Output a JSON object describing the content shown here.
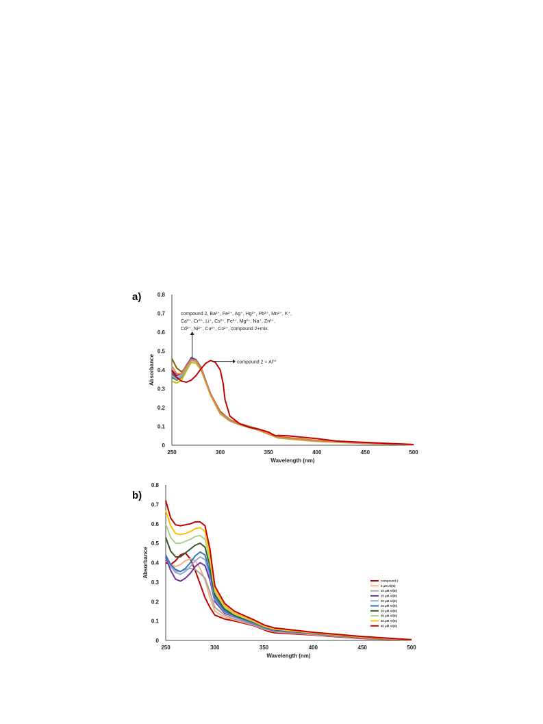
{
  "chart_data": [
    {
      "panel": "a)",
      "type": "line",
      "xlabel": "Wavelength (nm)",
      "ylabel": "Absorbance",
      "xlim": [
        250,
        500
      ],
      "ylim": [
        0,
        0.8
      ],
      "xticks": [
        "250",
        "300",
        "350",
        "400",
        "450",
        "500"
      ],
      "yticks": [
        "0",
        "0.1",
        "0.2",
        "0.3",
        "0.4",
        "0.5",
        "0.6",
        "0.7",
        "0.8"
      ],
      "annotation_main": {
        "lines": [
          "compound 2, Ba²⁺, Fe²⁺, Ag⁺, Hg²⁺, Pb²⁺, Mn²⁺, K⁺,",
          "Ca²⁺, Cr³⁺, Li⁺, Cs²⁺, Fe³⁺, Mg²⁺, Na⁺, Zn²⁺,",
          "Cd²⁺, Ni²⁺, Cu²⁺, Co²⁺, compound 2+mix."
        ]
      },
      "annotation_al": "compound 2 + Al³⁺",
      "series": [
        {
          "color": "#c00000",
          "x": [
            250,
            255,
            260,
            265,
            270,
            275,
            280,
            285,
            290,
            295,
            300,
            303,
            305,
            310,
            320,
            330,
            340,
            350,
            355,
            358,
            360,
            370,
            380,
            400,
            420,
            450,
            480,
            500
          ],
          "y": [
            0.395,
            0.36,
            0.34,
            0.335,
            0.345,
            0.37,
            0.405,
            0.435,
            0.45,
            0.44,
            0.4,
            0.33,
            0.24,
            0.155,
            0.115,
            0.095,
            0.085,
            0.07,
            0.055,
            0.05,
            0.052,
            0.05,
            0.045,
            0.035,
            0.022,
            0.015,
            0.008,
            0.004
          ]
        },
        {
          "color": "#7f6000",
          "x": [
            250,
            255,
            260,
            265,
            270,
            275,
            280,
            285,
            290,
            300,
            310,
            320,
            340,
            350,
            360,
            400,
            450,
            500
          ],
          "y": [
            0.46,
            0.41,
            0.39,
            0.415,
            0.455,
            0.45,
            0.41,
            0.34,
            0.27,
            0.18,
            0.135,
            0.115,
            0.085,
            0.065,
            0.045,
            0.025,
            0.012,
            0.003
          ]
        },
        {
          "color": "#548235",
          "x": [
            250,
            255,
            260,
            265,
            270,
            275,
            280,
            285,
            290,
            300,
            310,
            320,
            340,
            350,
            360,
            400,
            450,
            500
          ],
          "y": [
            0.36,
            0.345,
            0.36,
            0.41,
            0.455,
            0.45,
            0.41,
            0.34,
            0.27,
            0.17,
            0.13,
            0.11,
            0.08,
            0.06,
            0.04,
            0.022,
            0.01,
            0.002
          ]
        },
        {
          "color": "#3a5f9f",
          "x": [
            250,
            255,
            260,
            265,
            270,
            275,
            280,
            285,
            290,
            300,
            310,
            320,
            340,
            350,
            360,
            400,
            450,
            500
          ],
          "y": [
            0.38,
            0.355,
            0.37,
            0.42,
            0.465,
            0.455,
            0.415,
            0.345,
            0.275,
            0.175,
            0.133,
            0.112,
            0.08,
            0.06,
            0.04,
            0.022,
            0.01,
            0.002
          ]
        },
        {
          "color": "#7030a0",
          "x": [
            250,
            255,
            260,
            265,
            270,
            275,
            280,
            285,
            290,
            300,
            310,
            320,
            340,
            350,
            360,
            400,
            430,
            450,
            500
          ],
          "y": [
            0.4,
            0.37,
            0.38,
            0.425,
            0.46,
            0.45,
            0.41,
            0.34,
            0.27,
            0.175,
            0.132,
            0.11,
            0.08,
            0.06,
            0.04,
            0.022,
            0.018,
            0.014,
            0.002
          ]
        },
        {
          "color": "#bfbf00",
          "x": [
            250,
            255,
            260,
            265,
            270,
            275,
            280,
            285,
            290,
            300,
            310,
            320,
            340,
            350,
            360,
            400,
            450,
            500
          ],
          "y": [
            0.34,
            0.33,
            0.345,
            0.395,
            0.44,
            0.435,
            0.4,
            0.335,
            0.265,
            0.165,
            0.128,
            0.108,
            0.078,
            0.058,
            0.038,
            0.02,
            0.009,
            0.002
          ]
        },
        {
          "color": "#8faadc",
          "x": [
            250,
            255,
            260,
            265,
            270,
            275,
            280,
            285,
            290,
            300,
            310,
            320,
            340,
            350,
            360,
            400,
            450,
            500
          ],
          "y": [
            0.37,
            0.35,
            0.365,
            0.41,
            0.45,
            0.445,
            0.405,
            0.34,
            0.27,
            0.17,
            0.13,
            0.11,
            0.08,
            0.06,
            0.04,
            0.022,
            0.01,
            0.002
          ]
        },
        {
          "color": "#a5a5a5",
          "x": [
            250,
            255,
            260,
            265,
            270,
            275,
            280,
            285,
            290,
            300,
            310,
            320,
            340,
            350,
            360,
            400,
            450,
            500
          ],
          "y": [
            0.39,
            0.36,
            0.37,
            0.415,
            0.455,
            0.45,
            0.41,
            0.34,
            0.27,
            0.172,
            0.131,
            0.11,
            0.08,
            0.06,
            0.04,
            0.022,
            0.01,
            0.002
          ]
        },
        {
          "color": "#ed7d31",
          "x": [
            250,
            255,
            260,
            265,
            270,
            275,
            280,
            285,
            290,
            300,
            310,
            320,
            340,
            350,
            360,
            400,
            450,
            500
          ],
          "y": [
            0.42,
            0.38,
            0.38,
            0.42,
            0.455,
            0.45,
            0.41,
            0.34,
            0.27,
            0.175,
            0.133,
            0.112,
            0.082,
            0.062,
            0.042,
            0.024,
            0.012,
            0.003
          ]
        }
      ]
    },
    {
      "panel": "b)",
      "type": "line",
      "xlabel": "Wavelength (nm)",
      "ylabel": "Absorbance",
      "xlim": [
        250,
        500
      ],
      "ylim": [
        0,
        0.8
      ],
      "xticks": [
        "250",
        "300",
        "350",
        "400",
        "450",
        "500"
      ],
      "yticks": [
        "0",
        "0.1",
        "0.2",
        "0.3",
        "0.4",
        "0.5",
        "0.6",
        "0.7",
        "0.8"
      ],
      "series": [
        {
          "name": "compound 2",
          "color": "#c00000",
          "x": [
            250,
            255,
            260,
            265,
            270,
            275,
            280,
            285,
            290,
            295,
            300,
            310,
            320,
            340,
            350,
            355,
            360,
            400,
            420,
            450,
            480,
            500
          ],
          "y": [
            0.4,
            0.39,
            0.41,
            0.44,
            0.45,
            0.42,
            0.36,
            0.29,
            0.22,
            0.17,
            0.13,
            0.11,
            0.1,
            0.075,
            0.055,
            0.045,
            0.04,
            0.028,
            0.02,
            0.01,
            0.005,
            0.002
          ]
        },
        {
          "name": "5 μM Al(III)",
          "color": "#f4b183",
          "x": [
            250,
            255,
            260,
            265,
            270,
            275,
            280,
            285,
            290,
            295,
            300,
            310,
            320,
            340,
            350,
            360,
            400,
            450,
            500
          ],
          "y": [
            0.42,
            0.39,
            0.38,
            0.39,
            0.41,
            0.42,
            0.41,
            0.37,
            0.31,
            0.22,
            0.15,
            0.12,
            0.105,
            0.078,
            0.058,
            0.045,
            0.03,
            0.012,
            0.002
          ]
        },
        {
          "name": "10 μM Al(III)",
          "color": "#a5a5a5",
          "x": [
            250,
            255,
            260,
            265,
            270,
            275,
            280,
            285,
            290,
            295,
            300,
            310,
            320,
            340,
            350,
            360,
            400,
            450,
            500
          ],
          "y": [
            0.43,
            0.38,
            0.355,
            0.355,
            0.365,
            0.37,
            0.365,
            0.345,
            0.32,
            0.25,
            0.17,
            0.13,
            0.11,
            0.08,
            0.06,
            0.047,
            0.032,
            0.013,
            0.002
          ]
        },
        {
          "name": "15 μM Al(III)",
          "color": "#7030a0",
          "x": [
            250,
            255,
            260,
            265,
            270,
            275,
            280,
            285,
            290,
            295,
            300,
            310,
            320,
            340,
            350,
            360,
            400,
            450,
            500
          ],
          "y": [
            0.43,
            0.36,
            0.315,
            0.305,
            0.32,
            0.345,
            0.38,
            0.4,
            0.385,
            0.31,
            0.2,
            0.14,
            0.12,
            0.085,
            0.065,
            0.05,
            0.034,
            0.014,
            0.003
          ]
        },
        {
          "name": "20 μM Al(III)",
          "color": "#8faadc",
          "x": [
            250,
            255,
            260,
            265,
            270,
            275,
            280,
            285,
            290,
            295,
            300,
            310,
            320,
            340,
            350,
            360,
            400,
            450,
            500
          ],
          "y": [
            0.44,
            0.38,
            0.35,
            0.34,
            0.355,
            0.38,
            0.41,
            0.43,
            0.415,
            0.33,
            0.21,
            0.145,
            0.122,
            0.087,
            0.066,
            0.052,
            0.035,
            0.015,
            0.003
          ]
        },
        {
          "name": "25 μM Al(III)",
          "color": "#2e75b6",
          "x": [
            250,
            255,
            260,
            265,
            270,
            275,
            280,
            285,
            290,
            295,
            300,
            310,
            320,
            340,
            350,
            360,
            400,
            450,
            500
          ],
          "y": [
            0.44,
            0.39,
            0.365,
            0.355,
            0.37,
            0.4,
            0.435,
            0.455,
            0.44,
            0.35,
            0.22,
            0.15,
            0.125,
            0.09,
            0.068,
            0.054,
            0.036,
            0.016,
            0.003
          ]
        },
        {
          "name": "30 μM Al(III)",
          "color": "#375623",
          "x": [
            250,
            255,
            260,
            265,
            270,
            275,
            280,
            285,
            290,
            295,
            300,
            310,
            320,
            340,
            350,
            360,
            400,
            450,
            500
          ],
          "y": [
            0.53,
            0.46,
            0.43,
            0.43,
            0.45,
            0.47,
            0.49,
            0.5,
            0.48,
            0.38,
            0.235,
            0.16,
            0.13,
            0.093,
            0.07,
            0.056,
            0.037,
            0.016,
            0.003
          ]
        },
        {
          "name": "35 μM Al(III)",
          "color": "#a9d18e",
          "x": [
            250,
            255,
            260,
            265,
            270,
            275,
            280,
            285,
            290,
            295,
            300,
            310,
            320,
            340,
            350,
            360,
            400,
            450,
            500
          ],
          "y": [
            0.6,
            0.53,
            0.5,
            0.5,
            0.51,
            0.52,
            0.535,
            0.54,
            0.52,
            0.41,
            0.25,
            0.17,
            0.135,
            0.096,
            0.072,
            0.058,
            0.038,
            0.017,
            0.003
          ]
        },
        {
          "name": "40 μM Al(III)",
          "color": "#ffc000",
          "x": [
            250,
            255,
            260,
            265,
            270,
            275,
            280,
            285,
            290,
            295,
            300,
            310,
            320,
            340,
            350,
            360,
            400,
            450,
            500
          ],
          "y": [
            0.67,
            0.59,
            0.55,
            0.545,
            0.55,
            0.56,
            0.575,
            0.58,
            0.56,
            0.44,
            0.265,
            0.18,
            0.14,
            0.1,
            0.075,
            0.06,
            0.04,
            0.018,
            0.004
          ]
        },
        {
          "name": "45 μM Al(III)",
          "color": "#c00000",
          "x": [
            250,
            255,
            260,
            265,
            270,
            275,
            280,
            285,
            290,
            295,
            300,
            310,
            320,
            340,
            350,
            360,
            400,
            450,
            500
          ],
          "y": [
            0.72,
            0.63,
            0.595,
            0.59,
            0.595,
            0.6,
            0.61,
            0.61,
            0.59,
            0.47,
            0.28,
            0.19,
            0.15,
            0.105,
            0.08,
            0.065,
            0.042,
            0.02,
            0.004
          ]
        }
      ]
    }
  ]
}
